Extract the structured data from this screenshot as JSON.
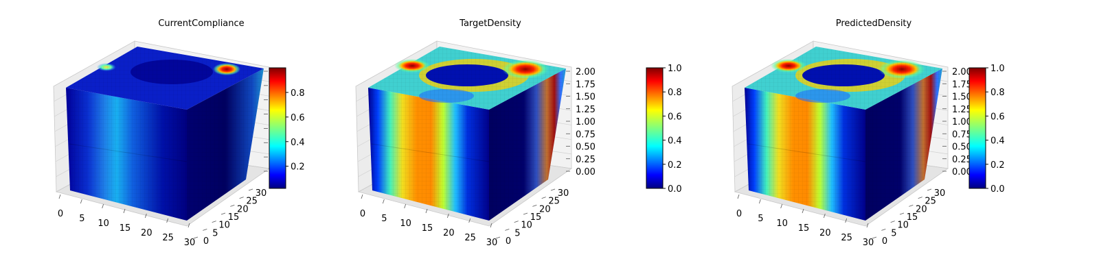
{
  "figure": {
    "panels": [
      {
        "title": "CurrentCompliance"
      },
      {
        "title": "TargetDensity"
      },
      {
        "title": "PredictedDensity"
      }
    ]
  },
  "colormap": "jet",
  "chart_data": [
    {
      "type": "volume3d",
      "title": "CurrentCompliance",
      "x_ticks": [
        "0",
        "5",
        "10",
        "15",
        "20",
        "25",
        "30"
      ],
      "y_ticks": [
        "0",
        "5",
        "10",
        "15",
        "20",
        "25",
        "30"
      ],
      "z_ticks": [],
      "xlim": [
        0,
        32
      ],
      "ylim": [
        0,
        32
      ],
      "colorbar": {
        "ticks": [
          "0.2",
          "0.4",
          "0.6",
          "0.8"
        ],
        "range": [
          0.02,
          1.0
        ]
      }
    },
    {
      "type": "volume3d",
      "title": "TargetDensity",
      "x_ticks": [
        "0",
        "5",
        "10",
        "15",
        "20",
        "25",
        "30"
      ],
      "y_ticks": [
        "0",
        "5",
        "10",
        "15",
        "20",
        "25",
        "30"
      ],
      "z_ticks": [
        "0.00",
        "0.25",
        "0.50",
        "0.75",
        "1.00",
        "1.25",
        "1.50",
        "1.75",
        "2.00"
      ],
      "xlim": [
        0,
        32
      ],
      "ylim": [
        0,
        32
      ],
      "zlim": [
        0,
        2
      ],
      "colorbar": {
        "ticks": [
          "0.0",
          "0.2",
          "0.4",
          "0.6",
          "0.8",
          "1.0"
        ],
        "range": [
          0.0,
          1.0
        ]
      }
    },
    {
      "type": "volume3d",
      "title": "PredictedDensity",
      "x_ticks": [
        "0",
        "5",
        "10",
        "15",
        "20",
        "25",
        "30"
      ],
      "y_ticks": [
        "0",
        "5",
        "10",
        "15",
        "20",
        "25",
        "30"
      ],
      "z_ticks": [
        "0.00",
        "0.25",
        "0.50",
        "0.75",
        "1.00",
        "1.25",
        "1.50",
        "1.75",
        "2.00"
      ],
      "xlim": [
        0,
        32
      ],
      "ylim": [
        0,
        32
      ],
      "zlim": [
        0,
        2
      ],
      "colorbar": {
        "ticks": [
          "0.0",
          "0.2",
          "0.4",
          "0.6",
          "0.8",
          "1.0"
        ],
        "range": [
          0.0,
          1.0
        ]
      }
    }
  ]
}
